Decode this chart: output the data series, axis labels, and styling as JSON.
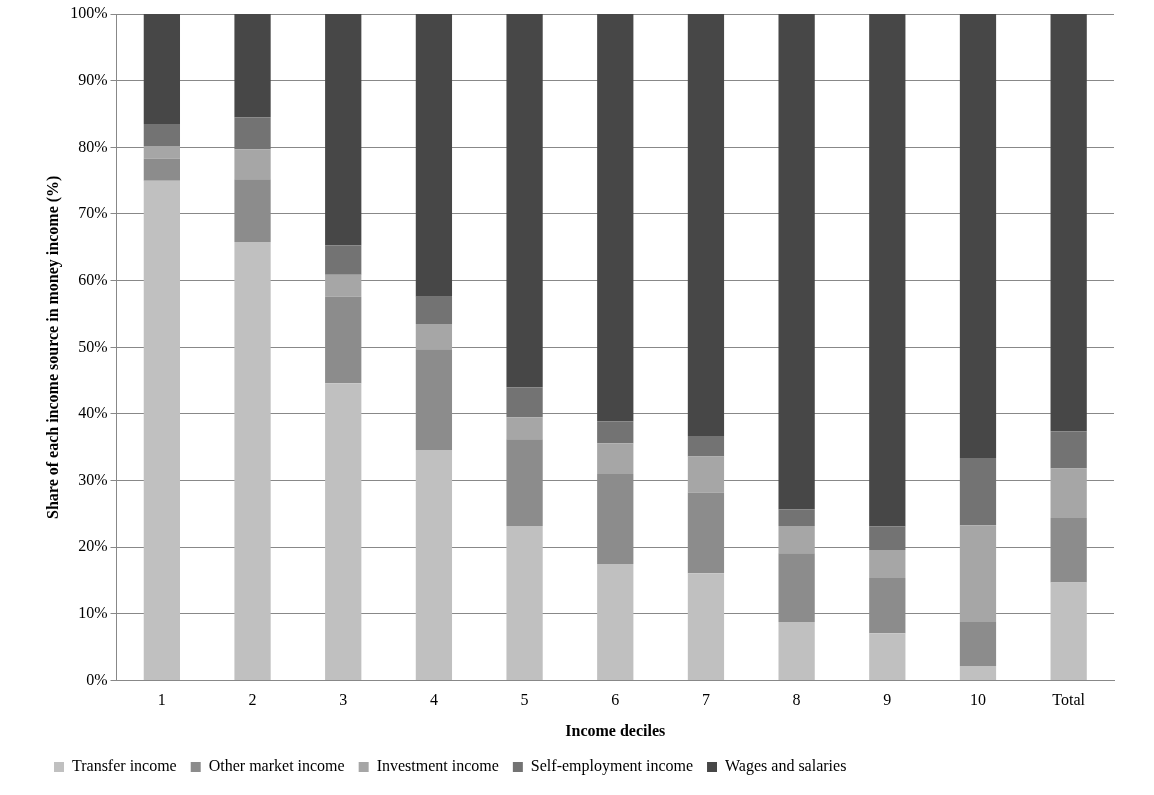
{
  "chart_data": {
    "type": "bar",
    "stacked": true,
    "xlabel": "Income deciles",
    "ylabel": "Share of each income source in money income (%)",
    "categories": [
      "1",
      "2",
      "3",
      "4",
      "5",
      "6",
      "7",
      "8",
      "9",
      "10",
      "Total"
    ],
    "ylim": [
      0,
      100
    ],
    "yticks": [
      {
        "value": 0,
        "label": "0%"
      },
      {
        "value": 10,
        "label": "10%"
      },
      {
        "value": 20,
        "label": "20%"
      },
      {
        "value": 30,
        "label": "30%"
      },
      {
        "value": 40,
        "label": "40%"
      },
      {
        "value": 50,
        "label": "50%"
      },
      {
        "value": 60,
        "label": "60%"
      },
      {
        "value": 70,
        "label": "70%"
      },
      {
        "value": 80,
        "label": "80%"
      },
      {
        "value": 90,
        "label": "90%"
      },
      {
        "value": 100,
        "label": "100%"
      }
    ],
    "grid": "y",
    "legend": "bottom",
    "series": [
      {
        "name": "Transfer income",
        "color": "#c0c0c0",
        "values": [
          75,
          65.8,
          44.6,
          34.6,
          23.2,
          17.5,
          16.1,
          8.8,
          7.1,
          2.2,
          14.7
        ]
      },
      {
        "name": "Other market income",
        "color": "#8c8c8c",
        "values": [
          3.3,
          9.4,
          13,
          15.1,
          13,
          13.5,
          12.1,
          10.3,
          8.3,
          6.6,
          9.7
        ]
      },
      {
        "name": "Investment income",
        "color": "#a6a6a6",
        "values": [
          1.9,
          4.5,
          3.3,
          3.8,
          3.3,
          4.6,
          5.4,
          4.1,
          4.2,
          14.5,
          7.4
        ]
      },
      {
        "name": "Self-employment income",
        "color": "#737373",
        "values": [
          3.3,
          4.8,
          4.4,
          4.1,
          4.5,
          3.3,
          3.1,
          2.5,
          3.5,
          10.1,
          5.6
        ]
      },
      {
        "name": "Wages and salaries",
        "color": "#474747",
        "values": [
          16.5,
          15.5,
          34.7,
          42.4,
          56,
          61.1,
          63.3,
          74.3,
          76.9,
          66.6,
          62.6
        ]
      }
    ]
  }
}
